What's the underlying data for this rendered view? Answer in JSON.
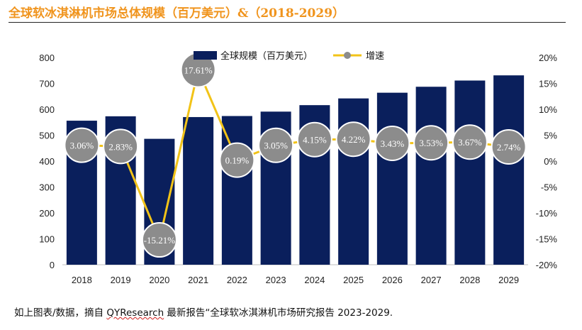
{
  "title": "全球软冰淇淋机市场总体规模（百万美元）&（2018-2029）",
  "caption": {
    "before": "如上图表/数据，摘自 ",
    "brand": "QYResearch",
    "after": " 最新报告“全球软冰淇淋机市场研究报告 2023-2029."
  },
  "chart_data": {
    "type": "bar+line",
    "categories": [
      "2018",
      "2019",
      "2020",
      "2021",
      "2022",
      "2023",
      "2024",
      "2025",
      "2026",
      "2027",
      "2028",
      "2029"
    ],
    "series": [
      {
        "name": "全球规模（百万美元）",
        "type": "bar",
        "axis": "left",
        "values": [
          556,
          573,
          486,
          570,
          574,
          591,
          616,
          642,
          664,
          687,
          711,
          731
        ]
      },
      {
        "name": "增速",
        "type": "line",
        "axis": "right",
        "values": [
          3.06,
          2.83,
          -15.21,
          17.61,
          0.19,
          3.05,
          4.15,
          4.22,
          3.43,
          3.53,
          3.67,
          2.74
        ],
        "labels": [
          "3.06%",
          "2.83%",
          "-15.21%",
          "17.61%",
          "0.19%",
          "3.05%",
          "4.15%",
          "4.22%",
          "3.43%",
          "3.53%",
          "3.67%",
          "2.74%"
        ]
      }
    ],
    "y_left": {
      "min": 0,
      "max": 800,
      "ticks": [
        "0",
        "100",
        "200",
        "300",
        "400",
        "500",
        "600",
        "700",
        "800"
      ]
    },
    "y_right": {
      "min": -20,
      "max": 20,
      "ticks": [
        "-20%",
        "-15%",
        "-10%",
        "-5%",
        "0%",
        "5%",
        "10%",
        "15%",
        "20%"
      ]
    },
    "legend_position": "top-center",
    "colors": {
      "bar": "#0a1f5c",
      "line": "#f2c318",
      "marker": "#8c8c8c",
      "marker_stroke": "#ffffff",
      "title": "#f0941d"
    }
  }
}
